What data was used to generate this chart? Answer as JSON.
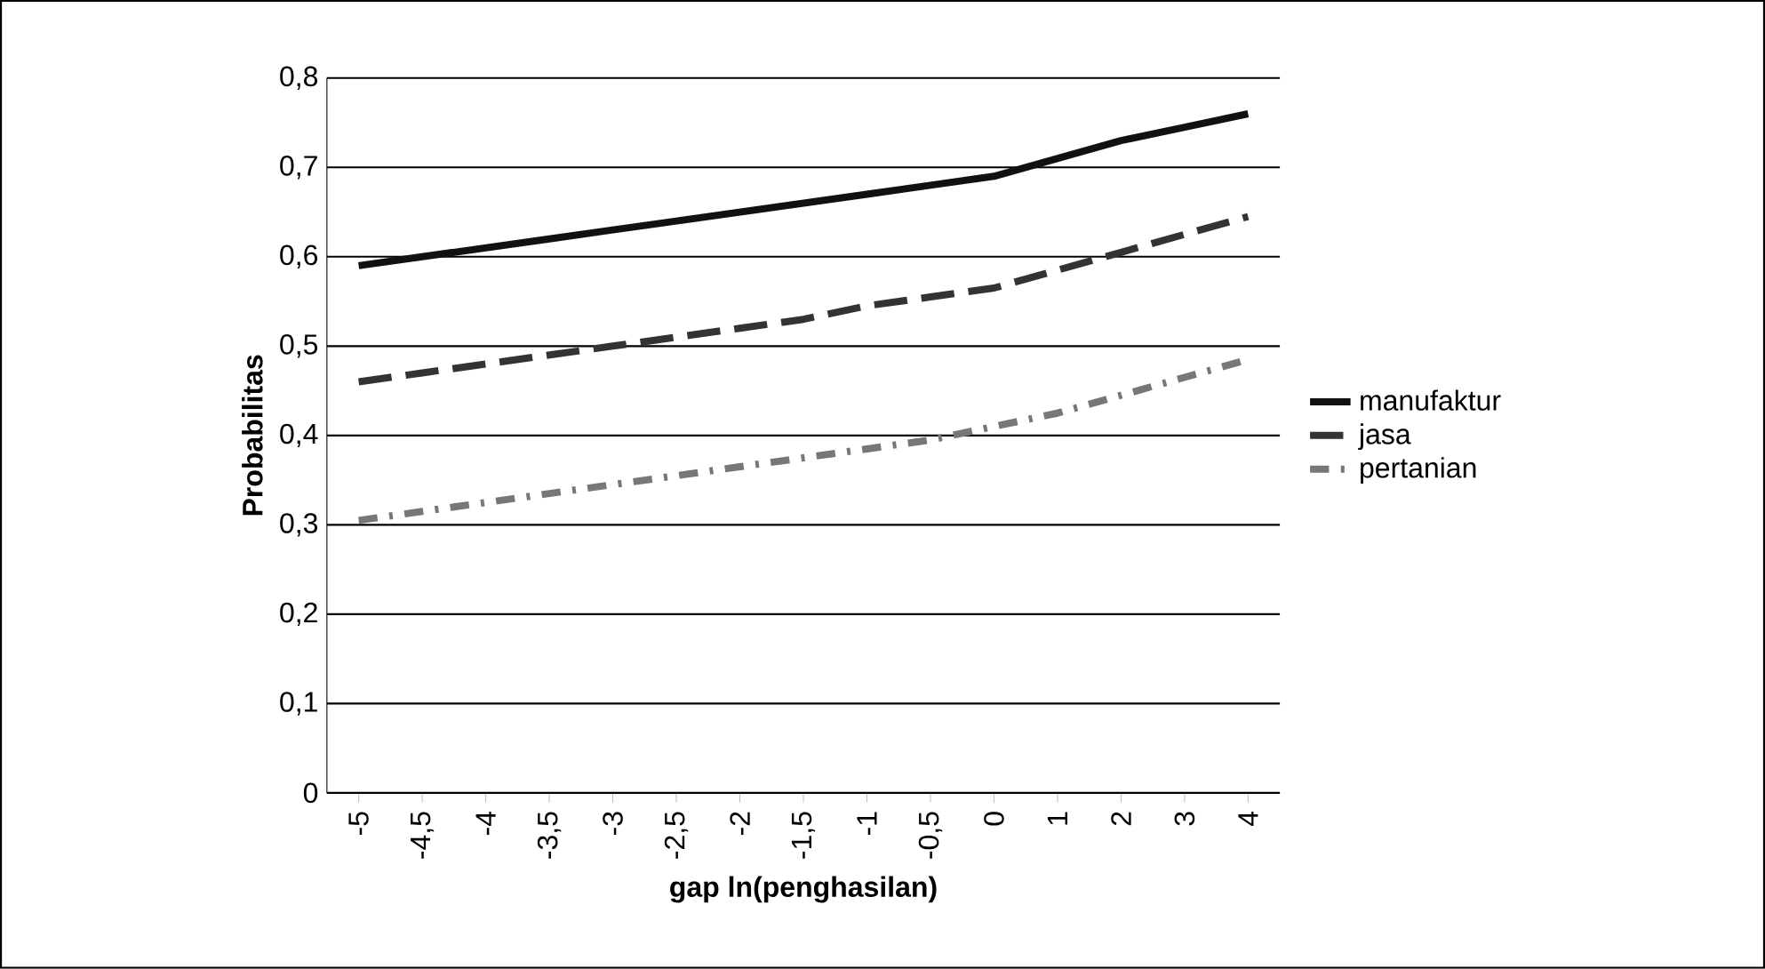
{
  "chart_data": {
    "type": "line",
    "xlabel": "gap ln(penghasilan)",
    "ylabel": "Probabilitas",
    "categories": [
      "-5",
      "-4,5",
      "-4",
      "-3,5",
      "-3",
      "-2,5",
      "-2",
      "-1,5",
      "-1",
      "-0,5",
      "0",
      "1",
      "2",
      "3",
      "4"
    ],
    "series": [
      {
        "name": "manufaktur",
        "color": "#111111",
        "line_style": "solid",
        "values": [
          0.59,
          0.6,
          0.61,
          0.62,
          0.63,
          0.64,
          0.65,
          0.66,
          0.67,
          0.68,
          0.69,
          0.71,
          0.73,
          0.745,
          0.76
        ]
      },
      {
        "name": "jasa",
        "color": "#333333",
        "line_style": "dashed",
        "values": [
          0.46,
          0.47,
          0.48,
          0.49,
          0.5,
          0.51,
          0.52,
          0.53,
          0.545,
          0.555,
          0.565,
          0.585,
          0.605,
          0.625,
          0.645
        ]
      },
      {
        "name": "pertanian",
        "color": "#777777",
        "line_style": "dotted",
        "values": [
          0.305,
          0.315,
          0.325,
          0.335,
          0.345,
          0.355,
          0.365,
          0.375,
          0.385,
          0.395,
          0.41,
          0.425,
          0.445,
          0.465,
          0.485
        ]
      }
    ],
    "ylim": [
      0,
      0.8
    ],
    "yticks": [
      {
        "value": 0,
        "label": "0"
      },
      {
        "value": 0.1,
        "label": "0,1"
      },
      {
        "value": 0.2,
        "label": "0,2"
      },
      {
        "value": 0.3,
        "label": "0,3"
      },
      {
        "value": 0.4,
        "label": "0,4"
      },
      {
        "value": 0.5,
        "label": "0,5"
      },
      {
        "value": 0.6,
        "label": "0,6"
      },
      {
        "value": 0.7,
        "label": "0,7"
      },
      {
        "value": 0.8,
        "label": "0,8"
      }
    ],
    "grid": "y",
    "legend": "right",
    "marker": "none"
  }
}
